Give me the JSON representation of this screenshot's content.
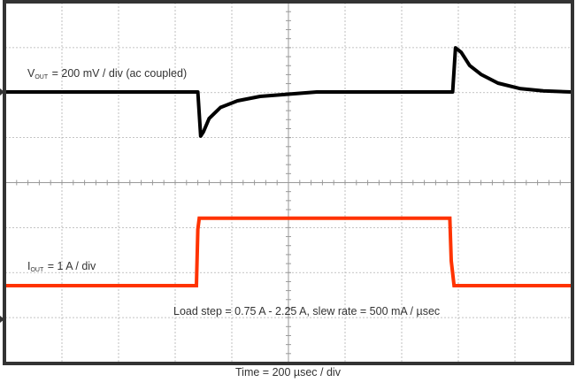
{
  "chart_data": {
    "type": "line",
    "title": "",
    "xlabel": "Time = 200 µsec / div",
    "ylabel": "",
    "grid": true,
    "divisions": {
      "x": 10,
      "y": 8
    },
    "time_per_div_us": 200,
    "x_unit": "µs",
    "annotations": [
      {
        "label_main": "V",
        "label_sub": "OUT",
        "label_rest": " = 200 mV / div (ac coupled)"
      },
      {
        "label_main": "I",
        "label_sub": "OUT",
        "label_rest": " = 1 A / div"
      },
      {
        "text": "Load step = 0.75 A - 2.25 A, slew rate = 500 mA / µsec"
      }
    ],
    "series": [
      {
        "name": "VOUT",
        "color": "#000000",
        "scale": "200 mV/div",
        "coupling": "ac",
        "x_us": [
          0,
          680,
          690,
          700,
          720,
          760,
          820,
          900,
          1000,
          1100,
          1580,
          1590,
          1610,
          1640,
          1680,
          1740,
          1820,
          1900,
          2000
        ],
        "y_mV": [
          0,
          0,
          -200,
          -180,
          -120,
          -70,
          -40,
          -20,
          -10,
          0,
          0,
          200,
          180,
          120,
          80,
          40,
          15,
          5,
          0
        ]
      },
      {
        "name": "IOUT",
        "color": "#ff3300",
        "scale": "1 A/div",
        "x_us": [
          0,
          675,
          680,
          685,
          1570,
          1575,
          1585,
          2000
        ],
        "y_A": [
          0.75,
          0.75,
          2.0,
          2.25,
          2.25,
          1.3,
          0.75,
          0.75
        ]
      }
    ]
  },
  "labels": {
    "vout_main": "V",
    "vout_sub": "OUT",
    "vout_rest": " = 200 mV / div (ac coupled)",
    "iout_main": "I",
    "iout_sub": "OUT",
    "iout_rest": " = 1 A / div",
    "load_step": "Load step = 0.75 A - 2.25 A, slew rate = 500 mA / µsec",
    "time": "Time = 200 µsec / div"
  },
  "colors": {
    "frame": "#333333",
    "grid": "#b0b0b0",
    "vout": "#000000",
    "iout": "#ff3300"
  }
}
